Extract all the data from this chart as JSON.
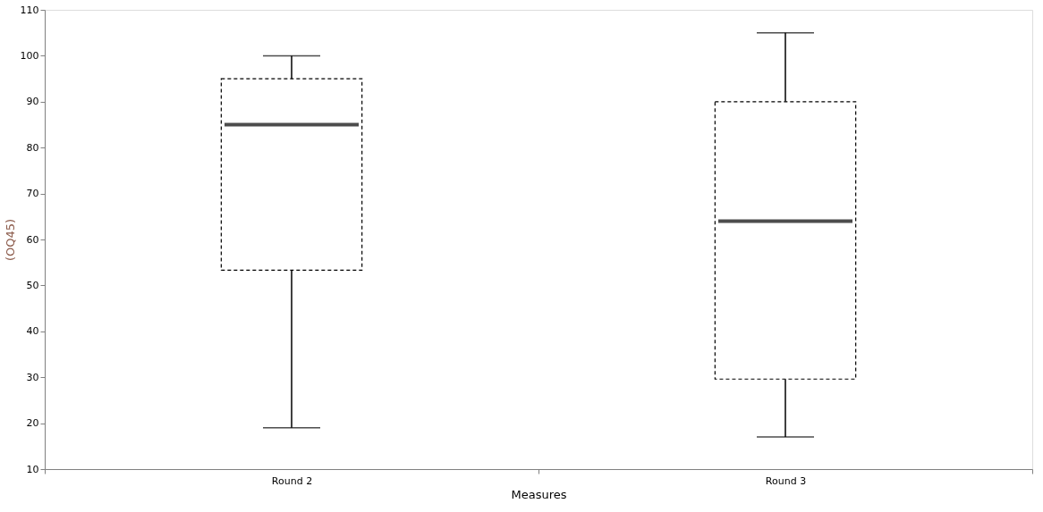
{
  "chart_data": {
    "type": "box",
    "xlabel": "Measures",
    "ylabel": "(OQ45)",
    "categories": [
      "Round 2",
      "Round 3"
    ],
    "boxes": [
      {
        "low": 19,
        "q1": 53.3,
        "median": 85,
        "q3": 95,
        "high": 100
      },
      {
        "low": 17,
        "q1": 29.6,
        "median": 64,
        "q3": 90,
        "high": 105
      }
    ],
    "color": "#000000",
    "line_style": "dashed",
    "ylim": [
      10,
      110
    ],
    "yticks": [
      10,
      20,
      30,
      40,
      50,
      60,
      70,
      80,
      90,
      100,
      110
    ],
    "grid": false
  }
}
